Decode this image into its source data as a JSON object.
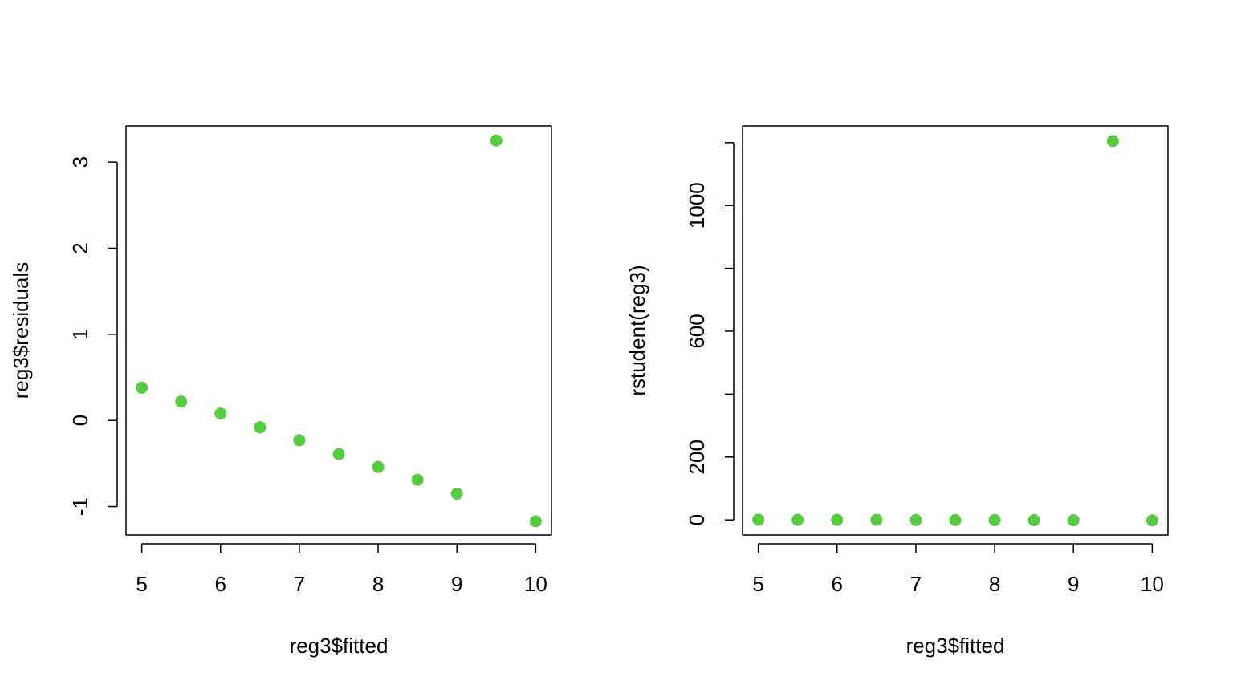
{
  "point_color": "#55CC40",
  "chart_data": [
    {
      "type": "scatter",
      "title": "",
      "xlabel": "reg3$fitted",
      "ylabel": "reg3$residuals",
      "x": [
        5,
        5.5,
        6,
        6.5,
        7,
        7.5,
        8,
        8.5,
        9,
        9.5,
        10
      ],
      "y": [
        0.38,
        0.22,
        0.08,
        -0.08,
        -0.23,
        -0.39,
        -0.54,
        -0.69,
        -0.85,
        3.25,
        -1.17
      ],
      "xlim": [
        4.8,
        10.2
      ],
      "ylim": [
        -1.33,
        3.42
      ],
      "xticks": [
        5,
        6,
        7,
        8,
        9,
        10
      ],
      "xtick_labels": [
        "5",
        "6",
        "7",
        "8",
        "9",
        "10"
      ],
      "yticks": [
        -1,
        0,
        1,
        2,
        3
      ],
      "ytick_labels": [
        "-1",
        "0",
        "1",
        "2",
        "3"
      ],
      "grid": false
    },
    {
      "type": "scatter",
      "title": "",
      "xlabel": "reg3$fitted",
      "ylabel": "rstudent(reg3)",
      "x": [
        5,
        5.5,
        6,
        6.5,
        7,
        7.5,
        8,
        8.5,
        9,
        9.5,
        10
      ],
      "y": [
        0.5,
        0.3,
        0.1,
        -0.1,
        -0.3,
        -0.5,
        -0.7,
        -0.9,
        -1.1,
        1205,
        -1.5
      ],
      "xlim": [
        4.8,
        10.2
      ],
      "ylim": [
        -48,
        1253
      ],
      "xticks": [
        5,
        6,
        7,
        8,
        9,
        10
      ],
      "xtick_labels": [
        "5",
        "6",
        "7",
        "8",
        "9",
        "10"
      ],
      "yticks": [
        0,
        200,
        400,
        600,
        800,
        1000,
        1200
      ],
      "ytick_labels": [
        "0",
        "200",
        "",
        "600",
        "",
        "1000",
        ""
      ],
      "grid": false
    }
  ]
}
